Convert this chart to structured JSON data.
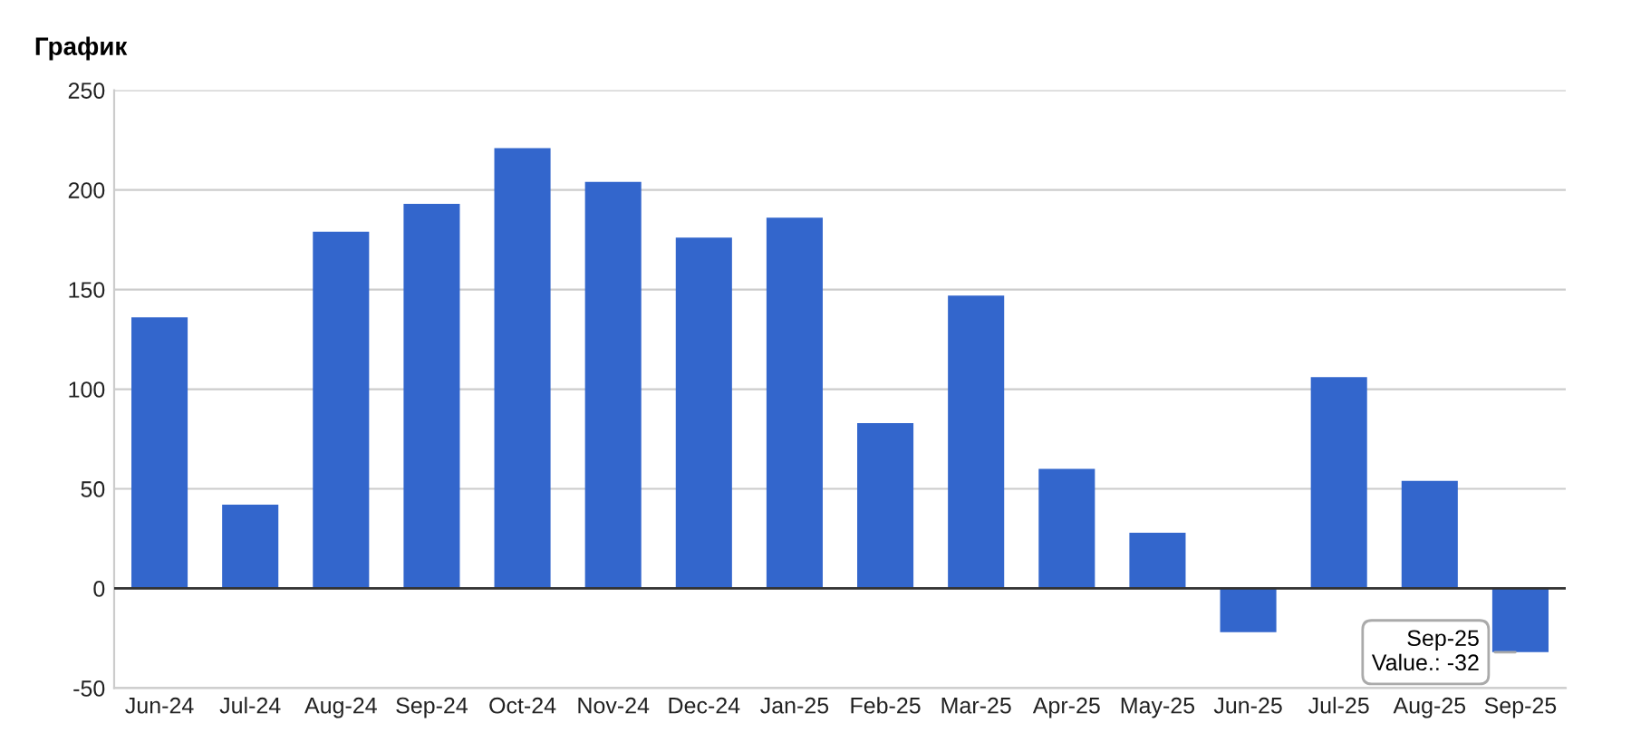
{
  "chart_data": {
    "type": "bar",
    "title": "График",
    "categories": [
      "Jun-24",
      "Jul-24",
      "Aug-24",
      "Sep-24",
      "Oct-24",
      "Nov-24",
      "Dec-24",
      "Jan-25",
      "Feb-25",
      "Mar-25",
      "Apr-25",
      "May-25",
      "Jun-25",
      "Jul-25",
      "Aug-25",
      "Sep-25"
    ],
    "values": [
      136,
      42,
      179,
      193,
      221,
      204,
      176,
      186,
      83,
      147,
      60,
      28,
      -22,
      106,
      54,
      -32
    ],
    "color": "#3366cc",
    "ylim": [
      -50,
      250
    ],
    "yticks": [
      -50,
      0,
      50,
      100,
      150,
      200,
      250
    ],
    "grid": "y",
    "annotations": [
      {
        "text": "Sep-25\nValue.: -32",
        "x": "Sep-25",
        "y": -32
      }
    ]
  }
}
